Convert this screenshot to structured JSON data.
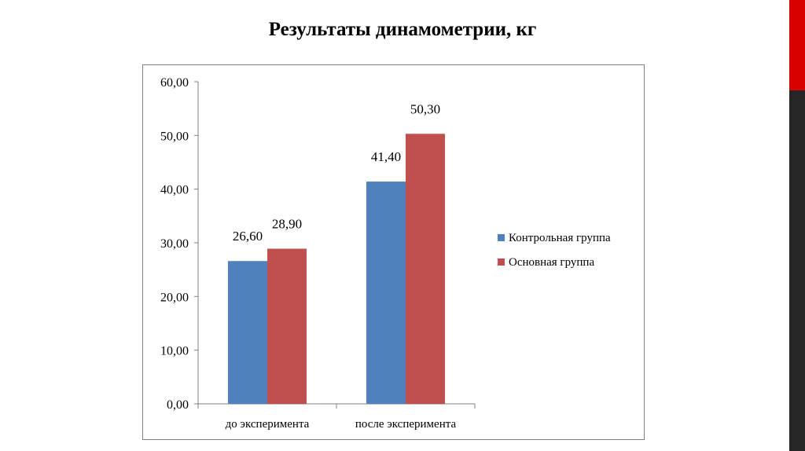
{
  "slide": {
    "title": "Результаты динамометрии, кг",
    "accent_colors": {
      "top": "#d90000",
      "bottom": "#262626"
    }
  },
  "chart_data": {
    "type": "bar",
    "categories": [
      "до эксперимента",
      "после эксперимента"
    ],
    "series": [
      {
        "name": "Контрольная группа",
        "color": "#4f81bd",
        "values": [
          26.6,
          41.4
        ],
        "labels": [
          "26,60",
          "41,40"
        ]
      },
      {
        "name": "Основная группа",
        "color": "#c0504d",
        "values": [
          28.9,
          50.3
        ],
        "labels": [
          "28,90",
          "50,30"
        ]
      }
    ],
    "ylim": [
      0,
      60
    ],
    "yticks": [
      0,
      10,
      20,
      30,
      40,
      50,
      60
    ],
    "ytick_labels": [
      "0,00",
      "10,00",
      "20,00",
      "30,00",
      "40,00",
      "50,00",
      "60,00"
    ],
    "grid": false,
    "legend_position": "right",
    "xlabel": "",
    "ylabel": ""
  }
}
